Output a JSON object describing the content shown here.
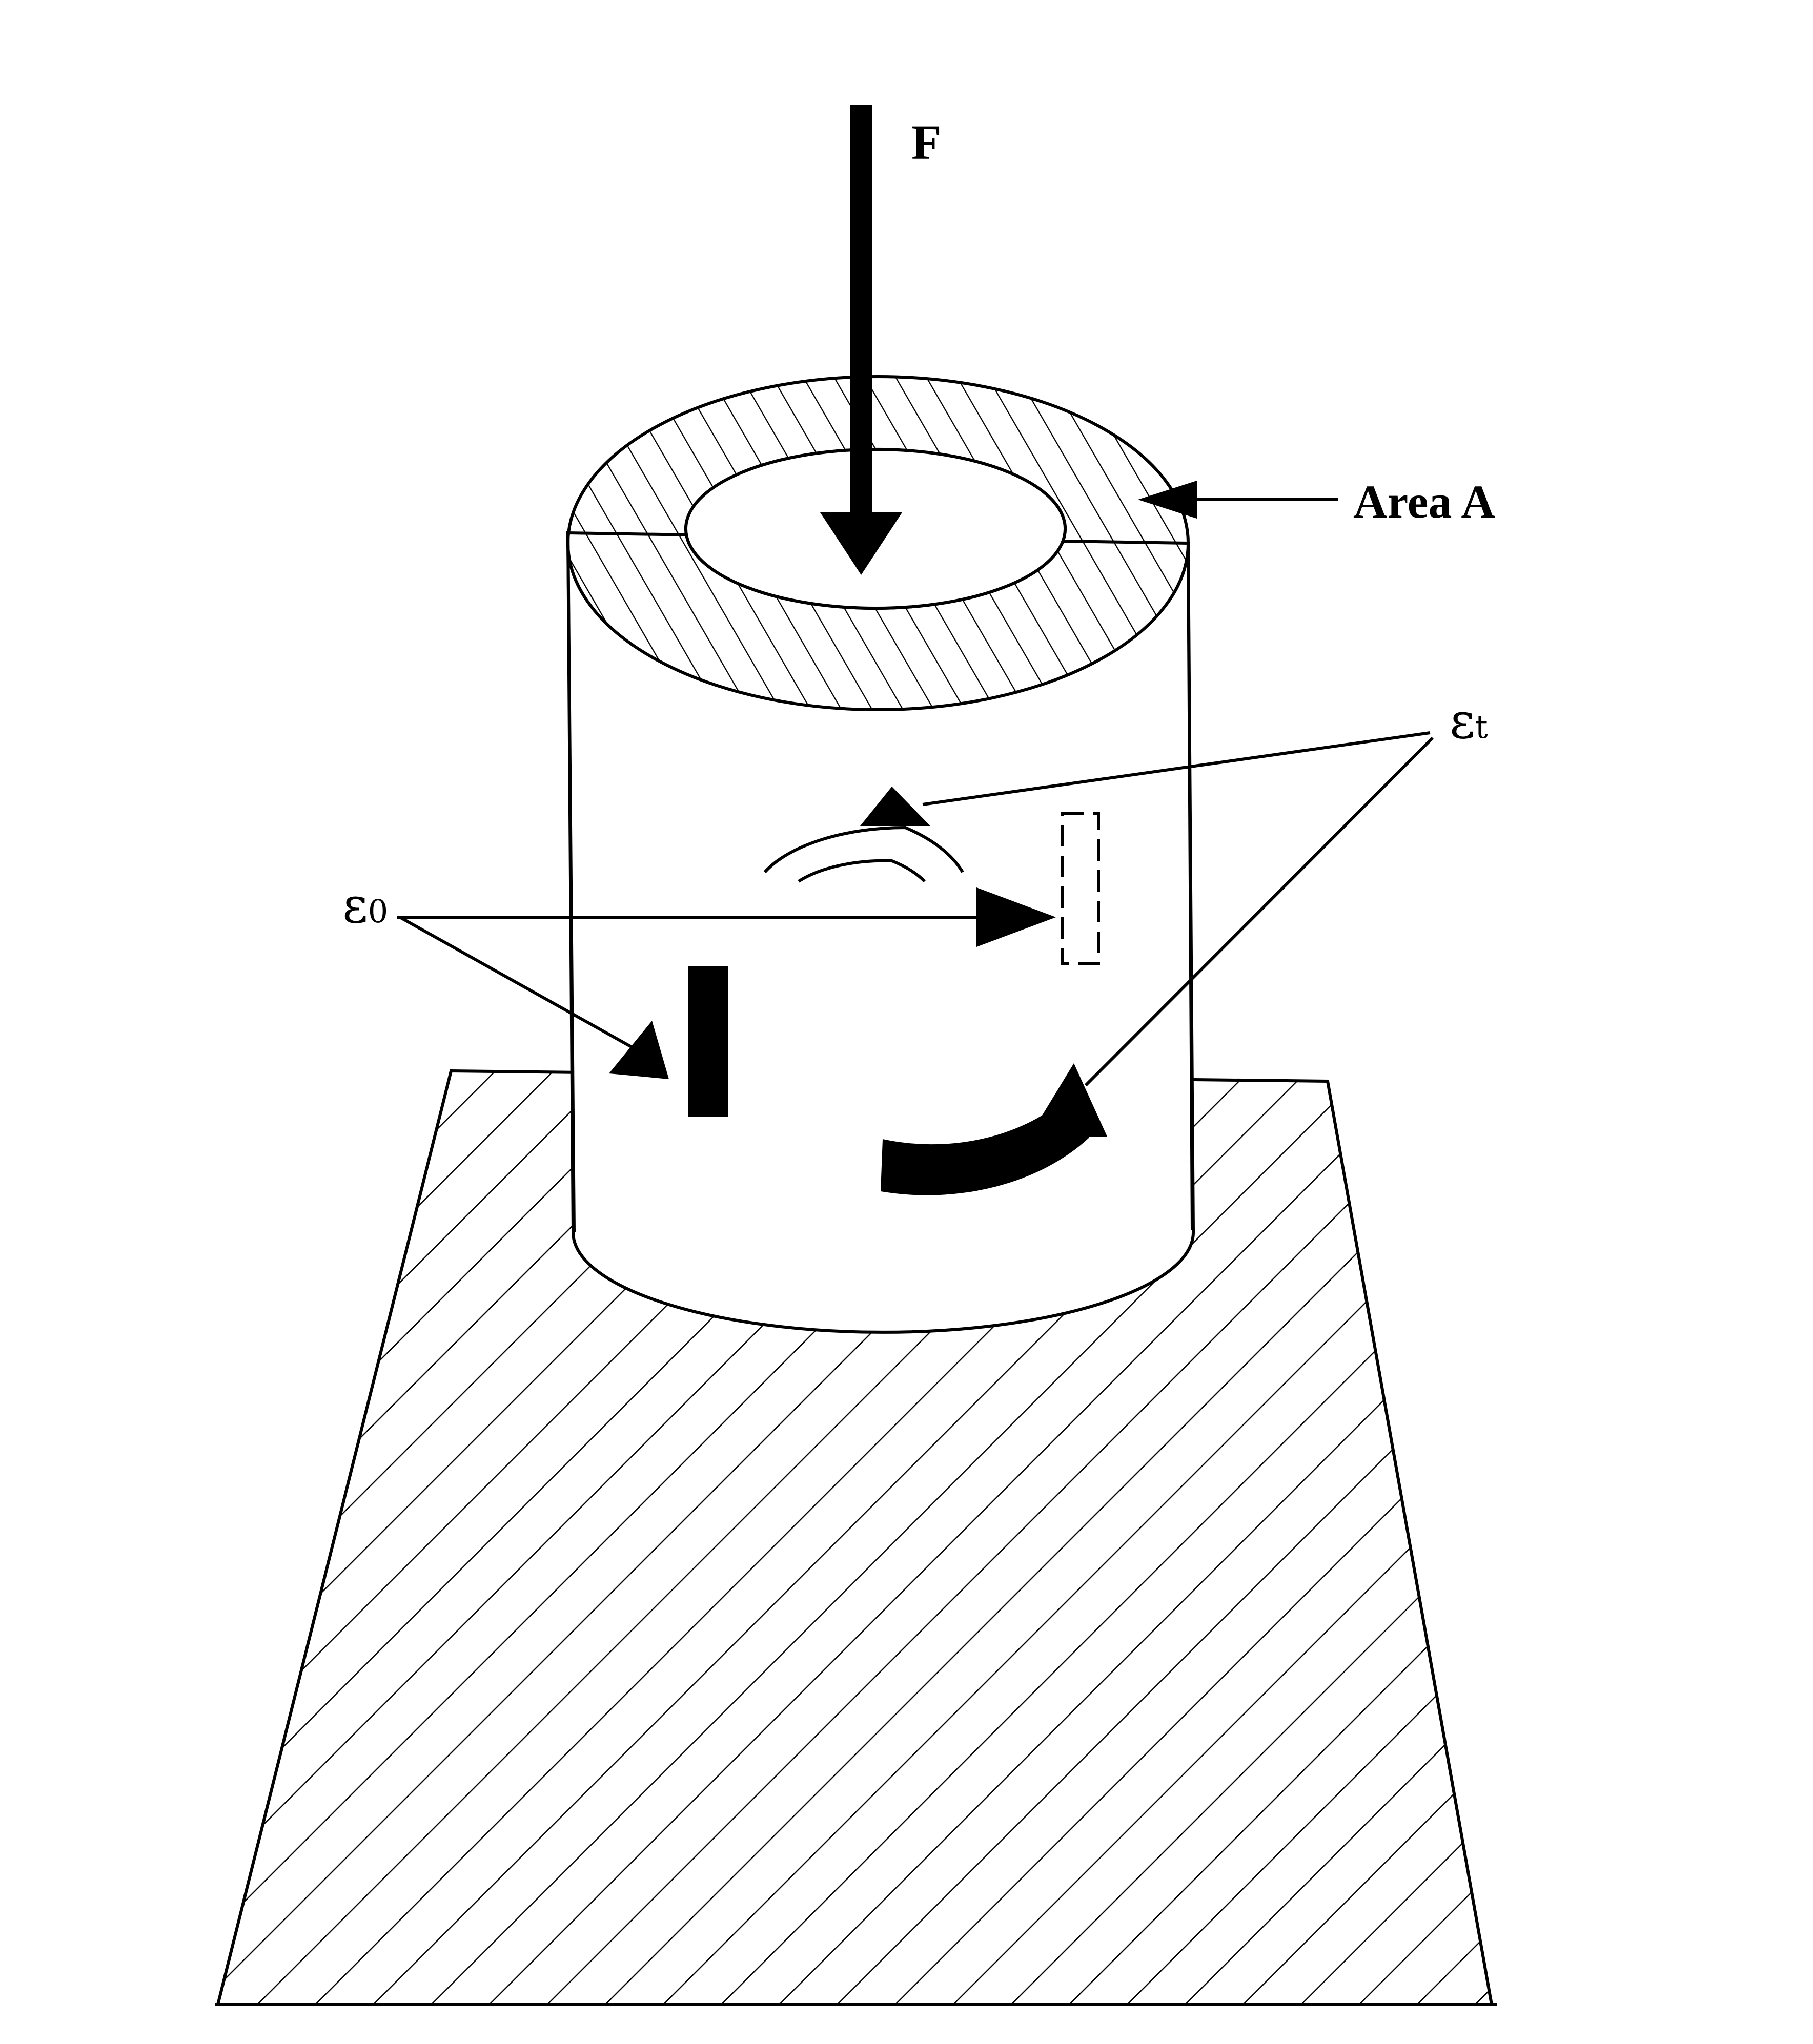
{
  "labels": {
    "force": "F",
    "area": "Area A",
    "strain_axial_symbol": "ε",
    "strain_axial_subscript": "0",
    "strain_transverse_symbol": "ε",
    "strain_transverse_subscript": "t"
  },
  "colors": {
    "ink": "#000000",
    "background": "#ffffff"
  }
}
